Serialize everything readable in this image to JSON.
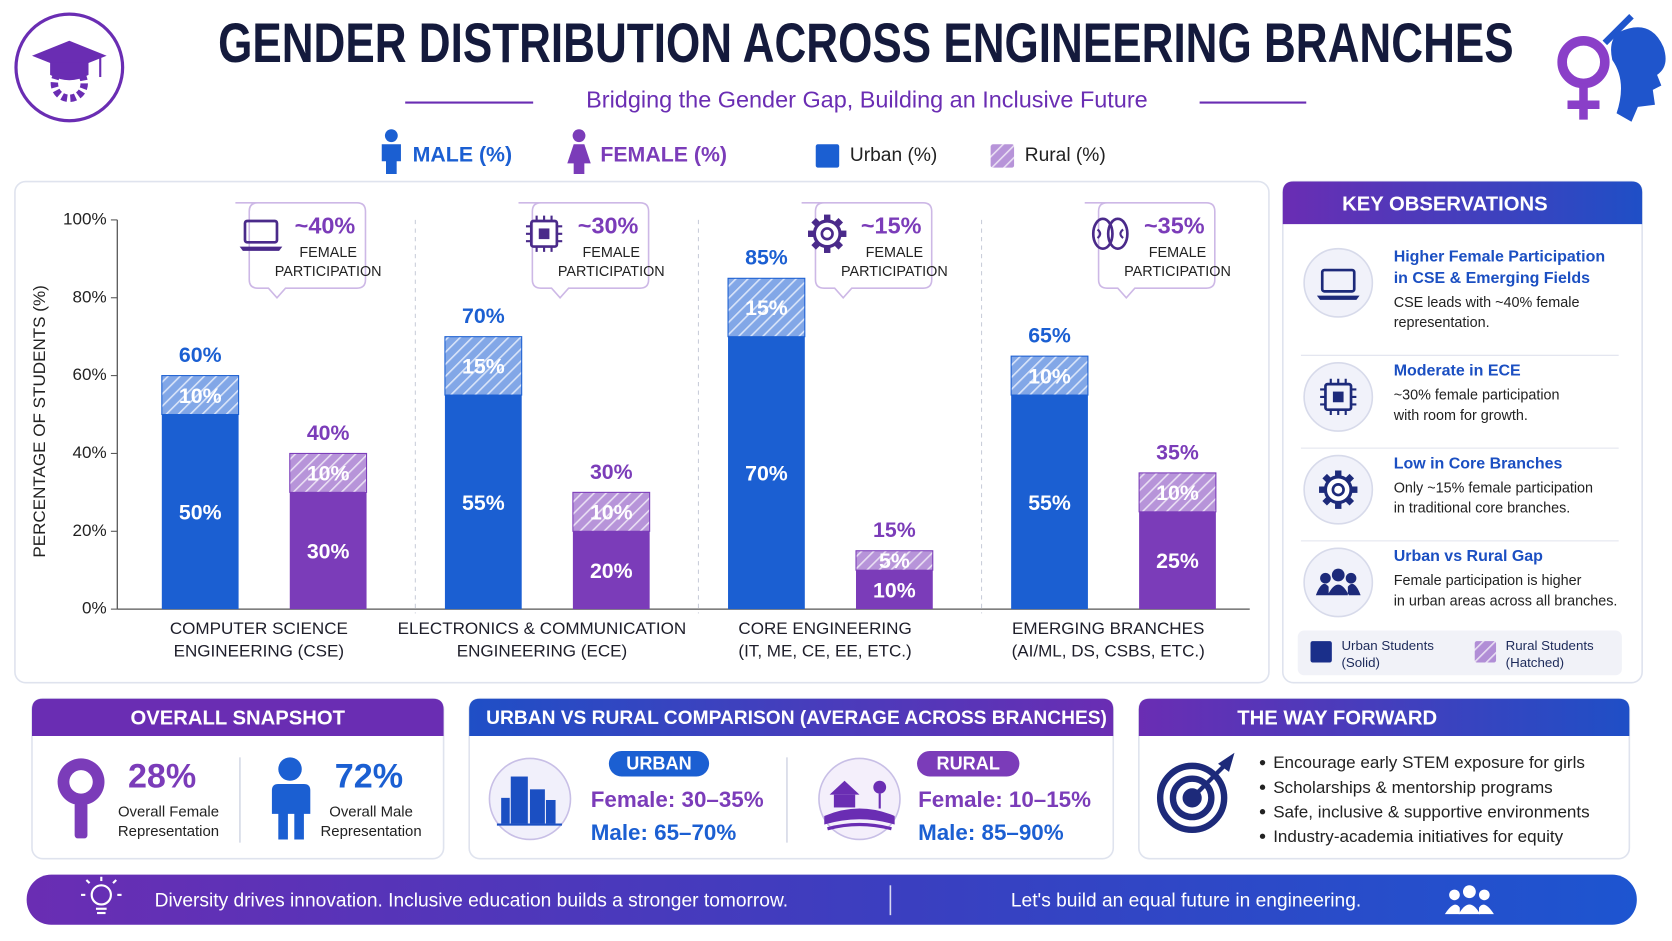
{
  "header": {
    "title": "GENDER DISTRIBUTION ACROSS ENGINEERING BRANCHES",
    "subtitle": "Bridging the Gender Gap, Building an Inclusive Future"
  },
  "chart_data": {
    "type": "bar",
    "stacked": true,
    "y_label": "PERCENTAGE OF STUDENTS (%)",
    "categories": [
      [
        "COMPUTER SCIENCE",
        "ENGINEERING (CSE)"
      ],
      [
        "ELECTRONICS & COMMUNICATION",
        "ENGINEERING (ECE)"
      ],
      [
        "CORE ENGINEERING",
        "(IT, ME, CE, EE, ETC.)"
      ],
      [
        "EMERGING BRANCHES",
        "(AI/ML, DS, CSBS, ETC.)"
      ]
    ],
    "ylim": [
      0,
      100
    ],
    "yticks": [
      {
        "value": 0,
        "label": "0%"
      },
      {
        "value": 20,
        "label": "20%"
      },
      {
        "value": 40,
        "label": "40%"
      },
      {
        "value": 60,
        "label": "60%"
      },
      {
        "value": 80,
        "label": "80%"
      },
      {
        "value": 100,
        "label": "100%"
      }
    ],
    "segments": [
      "Urban (%)",
      "Rural (%)"
    ],
    "series": [
      {
        "name": "MALE (%)",
        "color": "#1b5fd2",
        "stack": [
          {
            "values": [
              50,
              55,
              70,
              55
            ],
            "value_labels": [
              "50%",
              "55%",
              "70%",
              "55%"
            ]
          },
          {
            "values": [
              10,
              15,
              15,
              10
            ],
            "value_labels": [
              "10%",
              "15%",
              "15%",
              "10%"
            ]
          }
        ],
        "totals": {
          "values": [
            60,
            70,
            85,
            65
          ],
          "value_labels": [
            "60%",
            "70%",
            "85%",
            "65%"
          ]
        }
      },
      {
        "name": "FEMALE (%)",
        "color": "#7b3cb9",
        "stack": [
          {
            "values": [
              30,
              20,
              10,
              25
            ],
            "value_labels": [
              "30%",
              "20%",
              "10%",
              "25%"
            ]
          },
          {
            "values": [
              10,
              10,
              5,
              10
            ],
            "value_labels": [
              "10%",
              "10%",
              "5%",
              "10%"
            ]
          }
        ],
        "totals": {
          "values": [
            40,
            30,
            15,
            35
          ],
          "value_labels": [
            "40%",
            "30%",
            "15%",
            "35%"
          ]
        }
      }
    ],
    "callouts": [
      {
        "label": "~40%",
        "lines": [
          "FEMALE",
          "PARTICIPATION"
        ]
      },
      {
        "label": "~30%",
        "lines": [
          "FEMALE",
          "PARTICIPATION"
        ]
      },
      {
        "label": "~15%",
        "lines": [
          "FEMALE",
          "PARTICIPATION"
        ]
      },
      {
        "label": "~35%",
        "lines": [
          "FEMALE",
          "PARTICIPATION"
        ]
      }
    ]
  },
  "key_observations": {
    "title": "KEY OBSERVATIONS",
    "items": [
      {
        "title": [
          "Higher Female Participation",
          "in CSE & Emerging Fields"
        ],
        "body": [
          "CSE leads with ~40% female",
          "representation."
        ]
      },
      {
        "title": [
          "Moderate in ECE"
        ],
        "body": [
          "~30% female participation",
          "with room for growth."
        ]
      },
      {
        "title": [
          "Low in Core Branches"
        ],
        "body": [
          "Only ~15% female participation",
          "in traditional core branches."
        ]
      },
      {
        "title": [
          "Urban vs Rural Gap"
        ],
        "body": [
          "Female participation is higher",
          "in urban areas across all branches."
        ]
      }
    ],
    "legend": [
      [
        "Urban Students",
        "(Solid)"
      ],
      [
        "Rural Students",
        "(Hatched)"
      ]
    ]
  },
  "snapshot": {
    "title": "OVERALL SNAPSHOT",
    "female": {
      "value": "28%",
      "lines": [
        "Overall Female",
        "Representation"
      ]
    },
    "male": {
      "value": "72%",
      "lines": [
        "Overall Male",
        "Representation"
      ]
    }
  },
  "comparison": {
    "title": "URBAN VS RURAL COMPARISON (AVERAGE ACROSS BRANCHES)",
    "urban": {
      "label": "URBAN",
      "female": "Female: 30–35%",
      "male": "Male: 65–70%"
    },
    "rural": {
      "label": "RURAL",
      "female": "Female: 10–15%",
      "male": "Male: 85–90%"
    }
  },
  "way_forward": {
    "title": "THE WAY FORWARD",
    "items": [
      "Encourage early STEM exposure for girls",
      "Scholarships & mentorship programs",
      "Safe, inclusive & supportive environments",
      "Industry-academia initiatives for equity"
    ]
  },
  "footer": {
    "left": "Diversity drives innovation. Inclusive education builds a stronger tomorrow.",
    "right": "Let's build an equal future in engineering."
  }
}
